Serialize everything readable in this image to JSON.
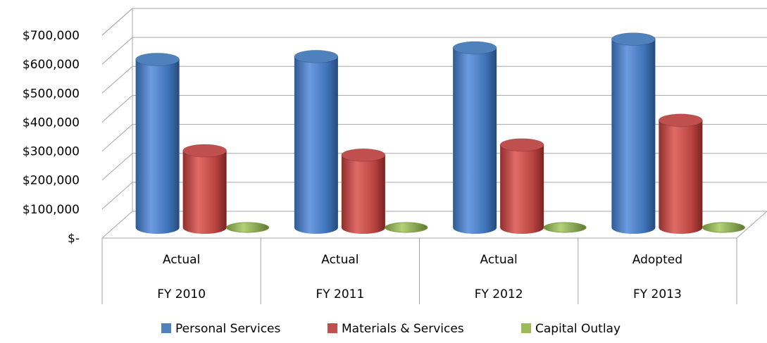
{
  "chart_data": {
    "type": "bar",
    "title": "",
    "xlabel": "",
    "ylabel": "",
    "categories": [
      [
        "Actual",
        "FY 2010"
      ],
      [
        "Actual",
        "FY 2011"
      ],
      [
        "Actual",
        "FY 2012"
      ],
      [
        "Adopted",
        "FY 2013"
      ]
    ],
    "series": [
      {
        "name": "Personal Services",
        "values": [
          580000,
          590000,
          620000,
          650000
        ],
        "color": "#4F81BD"
      },
      {
        "name": "Materials & Services",
        "values": [
          265000,
          250000,
          285000,
          370000
        ],
        "color": "#C0504D"
      },
      {
        "name": "Capital Outlay",
        "values": [
          5000,
          5000,
          5000,
          10000
        ],
        "color": "#9BBB59"
      }
    ],
    "ylim": [
      0,
      700000
    ],
    "yticks": [
      0,
      100000,
      200000,
      300000,
      400000,
      500000,
      600000,
      700000
    ],
    "ytick_labels": [
      "$-",
      "$100,000",
      "$200,000",
      "$300,000",
      "$400,000",
      "$500,000",
      "$600,000",
      "$700,000"
    ],
    "grid": true,
    "legend_position": "bottom",
    "style": "3d-cylinder"
  }
}
